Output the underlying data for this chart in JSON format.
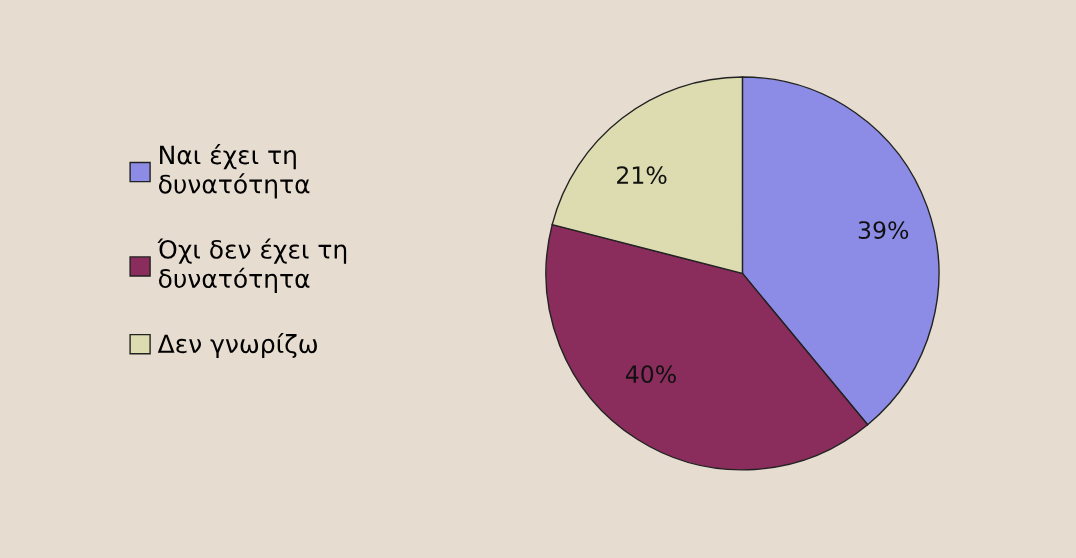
{
  "chart_data": {
    "type": "pie",
    "categories": [
      "Ναι έχει τη\nδυνατότητα",
      "Όχι δεν έχει τη\nδυνατότητα",
      "Δεν γνωρίζω"
    ],
    "values": [
      39,
      40,
      21
    ],
    "colors": [
      "#8c8ce6",
      "#8a2d5c",
      "#dcdcb0"
    ],
    "value_labels": [
      "39%",
      "40%",
      "21%"
    ],
    "legend": "left"
  }
}
